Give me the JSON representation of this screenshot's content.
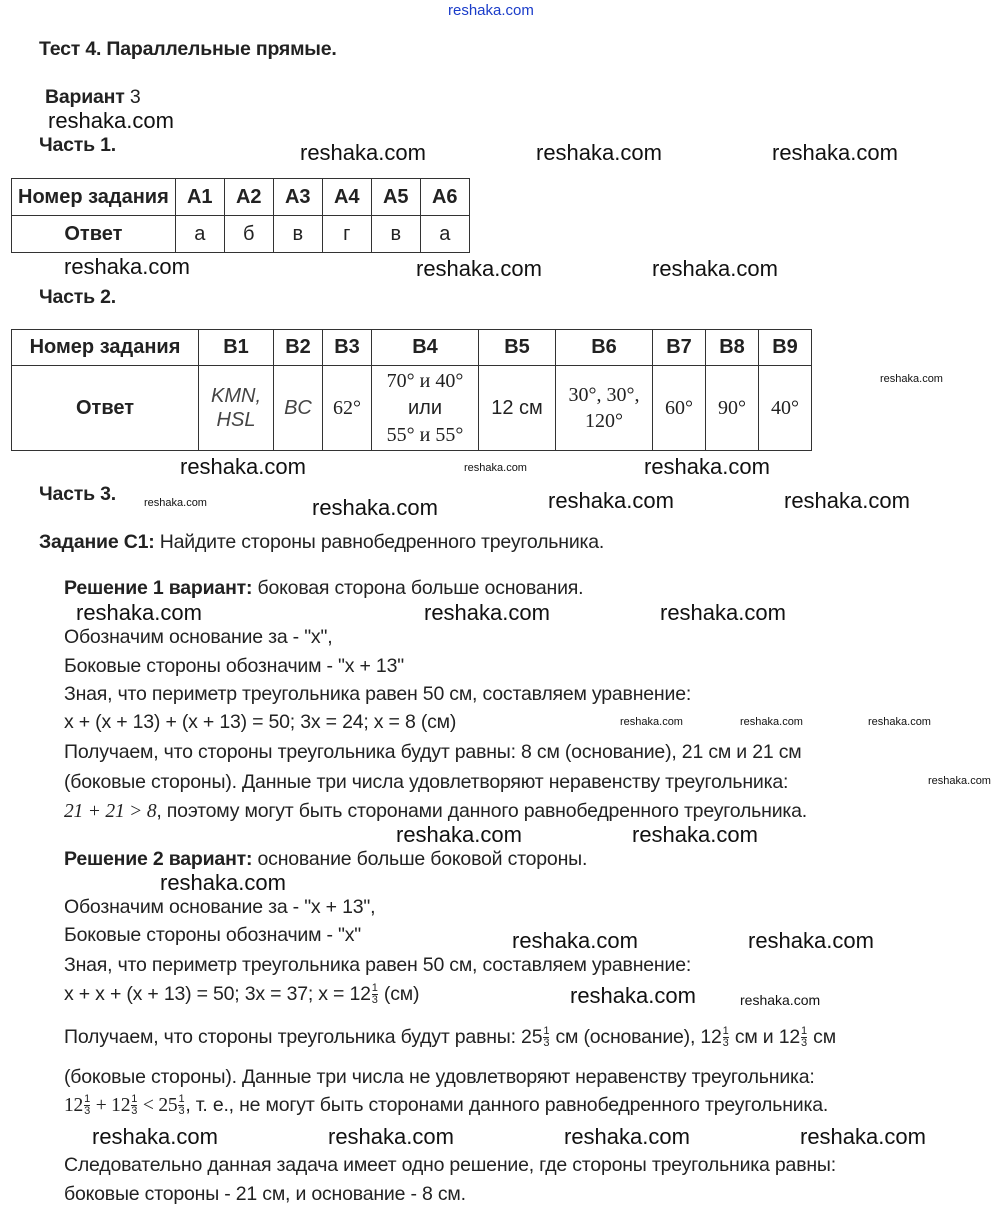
{
  "watermark": "reshaka.com",
  "title": "Тест 4. Параллельные прямые.",
  "variant_label": "Вариант",
  "variant_number": "3",
  "part1": {
    "heading": "Часть 1.",
    "header_label": "Номер задания",
    "answer_label": "Ответ",
    "tasks": [
      "A1",
      "A2",
      "A3",
      "A4",
      "A5",
      "A6"
    ],
    "answers": [
      "а",
      "б",
      "в",
      "г",
      "в",
      "а"
    ]
  },
  "part2": {
    "heading": "Часть 2.",
    "header_label": "Номер задания",
    "answer_label": "Ответ",
    "tasks": [
      "B1",
      "B2",
      "B3",
      "B4",
      "B5",
      "B6",
      "B7",
      "B8",
      "B9"
    ],
    "answers": {
      "b1_line1": "KMN,",
      "b1_line2": "HSL",
      "b2": "BC",
      "b3": "62°",
      "b4_line1": "70° и 40°",
      "b4_line2": "или",
      "b4_line3": "55° и 55°",
      "b5": "12 см",
      "b6_line1": "30°, 30°,",
      "b6_line2": "120°",
      "b7": "60°",
      "b8": "90°",
      "b9": "40°"
    }
  },
  "part3": {
    "heading": "Часть 3.",
    "task_label": "Задание С1:",
    "task_text": "Найдите стороны равнобедренного треугольника.",
    "solution1": {
      "label": "Решение 1 вариант:",
      "label_text": "боковая сторона больше основания.",
      "lines": [
        "Обозначим основание за - \"x\",",
        "Боковые стороны обозначим - \"x + 13\"",
        "Зная, что периметр треугольника равен 50 см, составляем уравнение:",
        "x + (x + 13) + (x + 13) = 50;  3x = 24;   x = 8 (см)",
        "Получаем, что стороны треугольника будут равны: 8 см (основание), 21 см и 21 см",
        "(боковые стороны). Данные три числа удовлетворяют неравенству треугольника:"
      ],
      "ineq_math": "21 + 21 > 8",
      "ineq_text": ", поэтому могут быть сторонами данного равнобедренного треугольника."
    },
    "solution2": {
      "label": "Решение 2 вариант:",
      "label_text": "основание больше боковой стороны.",
      "lines": [
        "Обозначим основание за - \"x + 13\",",
        "Боковые стороны обозначим - \"x\"",
        "Зная, что периметр треугольника равен 50 см, составляем уравнение:"
      ],
      "eq_text": "x + x + (x + 13) = 50;  3x = 37;   x = 12",
      "eq_unit": "(см)",
      "sides_prefix": "Получаем, что стороны треугольника будут равны: 25",
      "sides_mid1": "см (основание), 12",
      "sides_mid2": "см и 12",
      "sides_end": "см",
      "line_not": "(боковые стороны). Данные три числа не удовлетворяют неравенству треугольника:",
      "ineq_a": "12",
      "ineq_plus": " + 12",
      "ineq_lt": " < 25",
      "ineq_text": ", т. е., не могут быть сторонами данного равнобедренного треугольника.",
      "frac_num": "1",
      "frac_den": "3"
    },
    "conclusion": [
      "Следовательно данная задача имеет одно решение, где стороны треугольника равны:",
      "боковые стороны - 21 см, и основание - 8 см."
    ]
  }
}
